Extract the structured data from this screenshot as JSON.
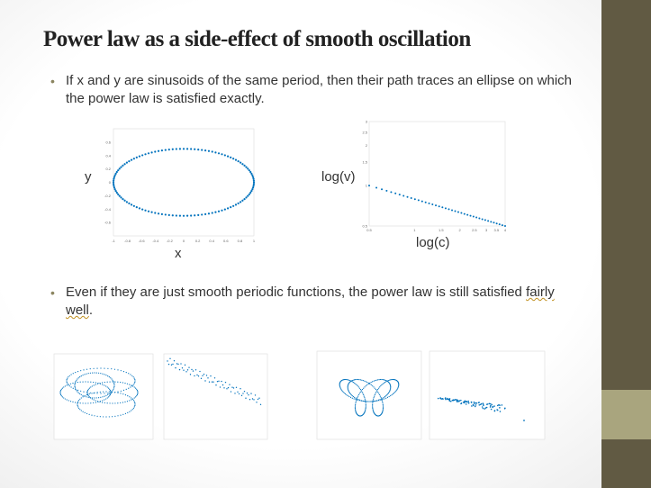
{
  "title": "Power law as a side-effect of smooth oscillation",
  "bullets": [
    {
      "text": "If x and y are sinusoids of the same period, then their path traces an ellipse on which the power law is satisfied exactly."
    },
    {
      "text_before": "Even if they are just smooth periodic functions, the power law is still satisfied ",
      "text_squiggle": "fairly well",
      "text_after": "."
    }
  ],
  "colors": {
    "accent_band": "#615a43",
    "accent_band_light": "#a9a57e",
    "bullet": "#8b8560",
    "plot": "#0072bd"
  },
  "chart_data": [
    {
      "type": "scatter",
      "name": "ellipse",
      "xlabel": "x",
      "ylabel": "y",
      "xlim": [
        -1,
        1
      ],
      "ylim": [
        -0.8,
        0.8
      ],
      "x_ticks": [
        "-1",
        "-0.8",
        "-0.6",
        "-0.4",
        "-0.2",
        "0",
        "0.2",
        "0.4",
        "0.6",
        "0.8",
        "1"
      ],
      "y_ticks": [
        "-0.6",
        "-0.4",
        "-0.2",
        "0",
        "0.2",
        "0.4",
        "0.6"
      ],
      "ellipse": {
        "rx": 1,
        "ry": 0.5,
        "points": 120
      }
    },
    {
      "type": "scatter",
      "name": "log-log",
      "xlabel": "log(c)",
      "ylabel": "log(v)",
      "xscale": "log",
      "yscale": "log",
      "xlim": [
        0.5,
        4
      ],
      "ylim": [
        0.5,
        3
      ],
      "x_ticks": [
        "0.5",
        "1",
        "1.5",
        "2",
        "2.5",
        "3",
        "3.5",
        "4"
      ],
      "y_ticks": [
        "0.5",
        "1",
        "1.5",
        "2",
        "2.5",
        "3"
      ],
      "line": {
        "x0": 0.5,
        "y0": 1,
        "x1": 4,
        "y1": 0.5,
        "points": 40
      }
    }
  ]
}
